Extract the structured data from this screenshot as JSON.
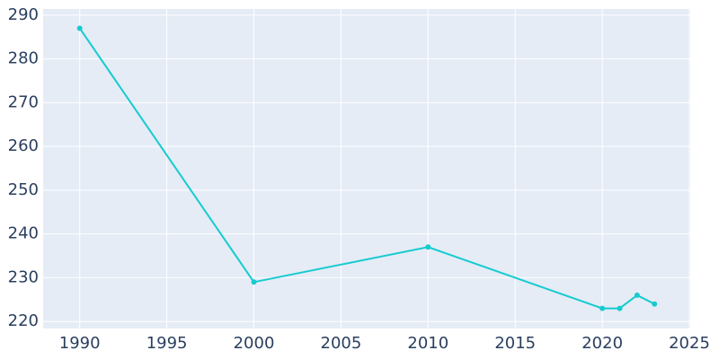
{
  "chart_data": {
    "type": "line",
    "x": [
      1990,
      2000,
      2010,
      2020,
      2021,
      2022,
      2023
    ],
    "series": [
      {
        "color": "#16cbd0",
        "values": [
          287,
          229,
          237,
          223,
          223,
          226,
          224
        ]
      }
    ],
    "xlim": [
      1987.9,
      2025.05
    ],
    "ylim": [
      218.4,
      291.4
    ],
    "xticks": [
      1990,
      1995,
      2000,
      2005,
      2010,
      2015,
      2020,
      2025
    ],
    "yticks": [
      220,
      230,
      240,
      250,
      260,
      270,
      280,
      290
    ],
    "grid": true,
    "background": "#e5ecf6"
  }
}
